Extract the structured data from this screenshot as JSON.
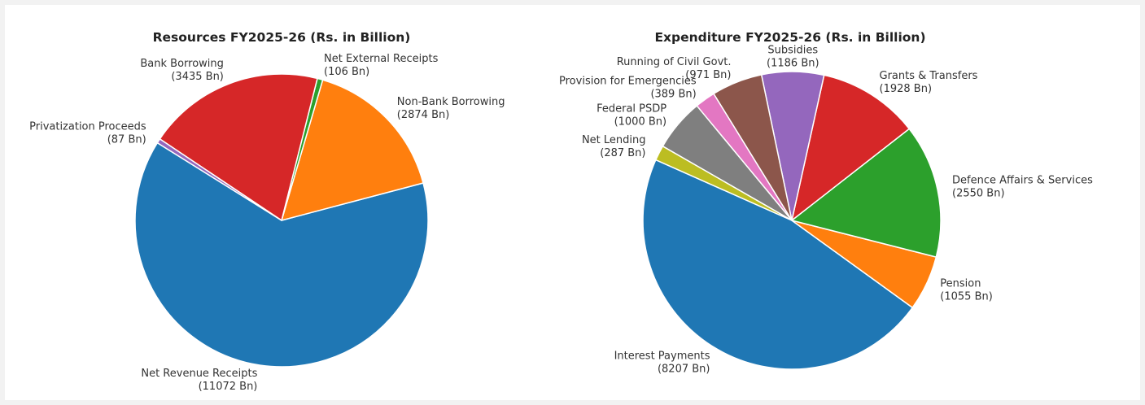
{
  "chart_data": [
    {
      "type": "pie",
      "title": "Resources FY2025-26 (Rs. in Billion)",
      "start_angle_deg": 148,
      "direction": "counterclockwise",
      "slices": [
        {
          "name": "Net Revenue Receipts",
          "value": 11072,
          "value_label": "(11072 Bn)",
          "color": "#1f77b4"
        },
        {
          "name": "Non-Bank Borrowing",
          "value": 2874,
          "value_label": "(2874 Bn)",
          "color": "#ff7f0e"
        },
        {
          "name": "Net External Receipts",
          "value": 106,
          "value_label": "(106 Bn)",
          "color": "#2ca02c"
        },
        {
          "name": "Bank Borrowing",
          "value": 3435,
          "value_label": "(3435 Bn)",
          "color": "#d62728"
        },
        {
          "name": "Privatization Proceeds",
          "value": 87,
          "value_label": "(87 Bn)",
          "color": "#9467bd"
        }
      ]
    },
    {
      "type": "pie",
      "title": "Expenditure FY2025-26 (Rs. in Billion)",
      "start_angle_deg": 156,
      "direction": "counterclockwise",
      "slices": [
        {
          "name": "Interest Payments",
          "value": 8207,
          "value_label": "(8207 Bn)",
          "color": "#1f77b4"
        },
        {
          "name": "Pension",
          "value": 1055,
          "value_label": "(1055 Bn)",
          "color": "#ff7f0e"
        },
        {
          "name": "Defence Affairs & Services",
          "value": 2550,
          "value_label": "(2550 Bn)",
          "color": "#2ca02c"
        },
        {
          "name": "Grants & Transfers",
          "value": 1928,
          "value_label": "(1928 Bn)",
          "color": "#d62728"
        },
        {
          "name": "Subsidies",
          "value": 1186,
          "value_label": "(1186 Bn)",
          "color": "#9467bd"
        },
        {
          "name": "Running of Civil Govt.",
          "value": 971,
          "value_label": "(971 Bn)",
          "color": "#8c564b"
        },
        {
          "name": "Provision for Emergencies",
          "value": 389,
          "value_label": "(389 Bn)",
          "color": "#e377c2"
        },
        {
          "name": "Federal PSDP",
          "value": 1000,
          "value_label": "(1000 Bn)",
          "color": "#7f7f7f"
        },
        {
          "name": "Net Lending",
          "value": 287,
          "value_label": "(287 Bn)",
          "color": "#bcbd22"
        }
      ]
    }
  ]
}
